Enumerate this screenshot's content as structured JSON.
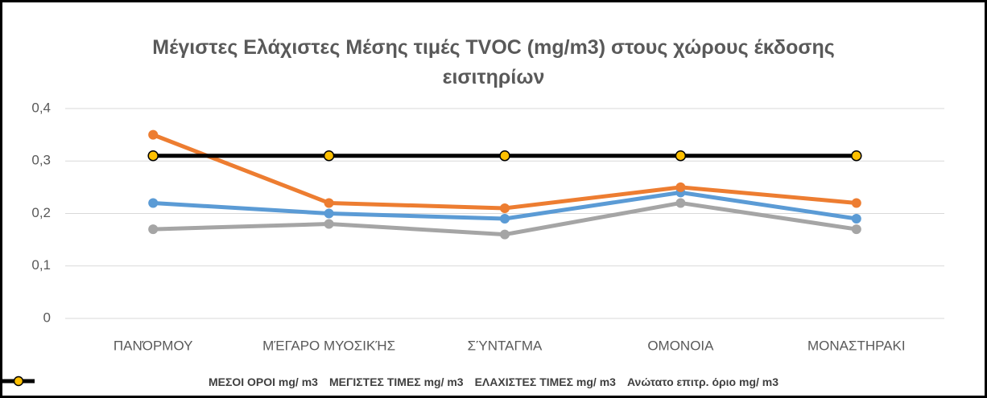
{
  "chart_data": {
    "type": "line",
    "title": "Μέγιστες  Ελάχιστες Μέσης τιμές TVOC (mg/m3) στους χώρους έκδοσης  εισιτηρίων",
    "categories": [
      "ΠΑΝΌΡΜΟΥ",
      "ΜΈΓΑΡΟ ΜΥΟΣΙΚΉΣ",
      "ΣΎΝΤΑΓΜΑ",
      "ΟΜΟΝΟΙΑ",
      "ΜΟΝΑΣΤΗΡΑΚΙ"
    ],
    "series": [
      {
        "name": "ΜΕΣΟΙ ΟΡΟΙ mg/ m3",
        "color": "#5b9bd5",
        "marker_fill": "#5b9bd5",
        "values": [
          0.22,
          0.2,
          0.19,
          0.24,
          0.19
        ]
      },
      {
        "name": "ΜΕΓΙΣΤΕΣ ΤΙΜΕΣ mg/ m3",
        "color": "#ed7d31",
        "marker_fill": "#ed7d31",
        "values": [
          0.35,
          0.22,
          0.21,
          0.25,
          0.22
        ]
      },
      {
        "name": "ΕΛΑΧΙΣΤΕΣ ΤΙΜΕΣ mg/ m3",
        "color": "#a5a5a5",
        "marker_fill": "#a5a5a5",
        "values": [
          0.17,
          0.18,
          0.16,
          0.22,
          0.17
        ]
      },
      {
        "name": "Ανώτατο επιτρ. όριο mg/ m3",
        "color": "#000000",
        "marker_fill": "#ffc000",
        "values": [
          0.31,
          0.31,
          0.31,
          0.31,
          0.31
        ]
      }
    ],
    "ylim": [
      0,
      0.4
    ],
    "yticks": [
      0,
      {
        "value": 0.1,
        "label": "0,1"
      },
      {
        "value": 0.2,
        "label": "0,2"
      },
      {
        "value": 0.3,
        "label": "0,3"
      },
      {
        "value": 0.4,
        "label": "0,4"
      }
    ],
    "grid": true,
    "legend": "bottom"
  }
}
